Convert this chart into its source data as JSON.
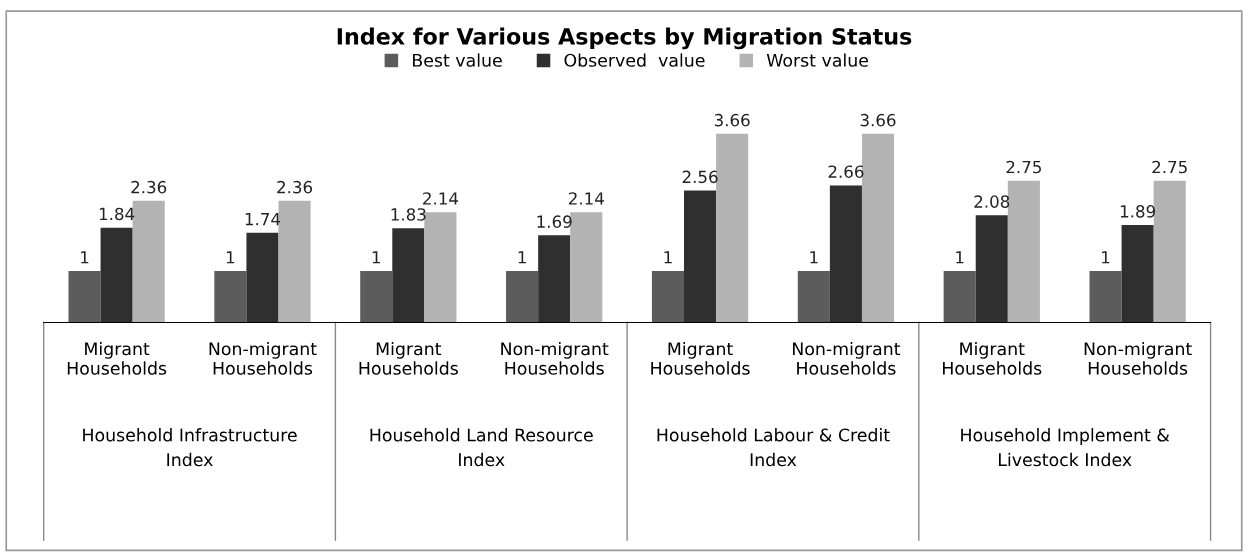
{
  "chart_data": {
    "type": "bar",
    "title": "Index for Various Aspects by Migration Status",
    "categories": [
      "Migrant Households",
      "Non-migrant Households",
      "Migrant Households",
      "Non-migrant Households",
      "Migrant Households",
      "Non-migrant Households",
      "Migrant Households",
      "Non-migrant Households"
    ],
    "series": [
      {
        "name": "Best value",
        "color": "#5c5c5c",
        "values": [
          1,
          1,
          1,
          1,
          1,
          1,
          1,
          1
        ]
      },
      {
        "name": "Observed  value",
        "color": "#2f2f2f",
        "values": [
          1.84,
          1.74,
          1.83,
          1.69,
          2.56,
          2.66,
          2.08,
          1.89
        ]
      },
      {
        "name": "Worst value",
        "color": "#b3b3b3",
        "values": [
          2.36,
          2.36,
          2.14,
          2.14,
          3.66,
          3.66,
          2.75,
          2.75
        ]
      }
    ],
    "annotations": [
      "Household Infrastructure Index",
      "Household Land Resource Index",
      "Household Labour & Credit Index",
      "Household Implement & Livestock Index"
    ],
    "data_labels": true,
    "legend": "top",
    "grid": false
  }
}
